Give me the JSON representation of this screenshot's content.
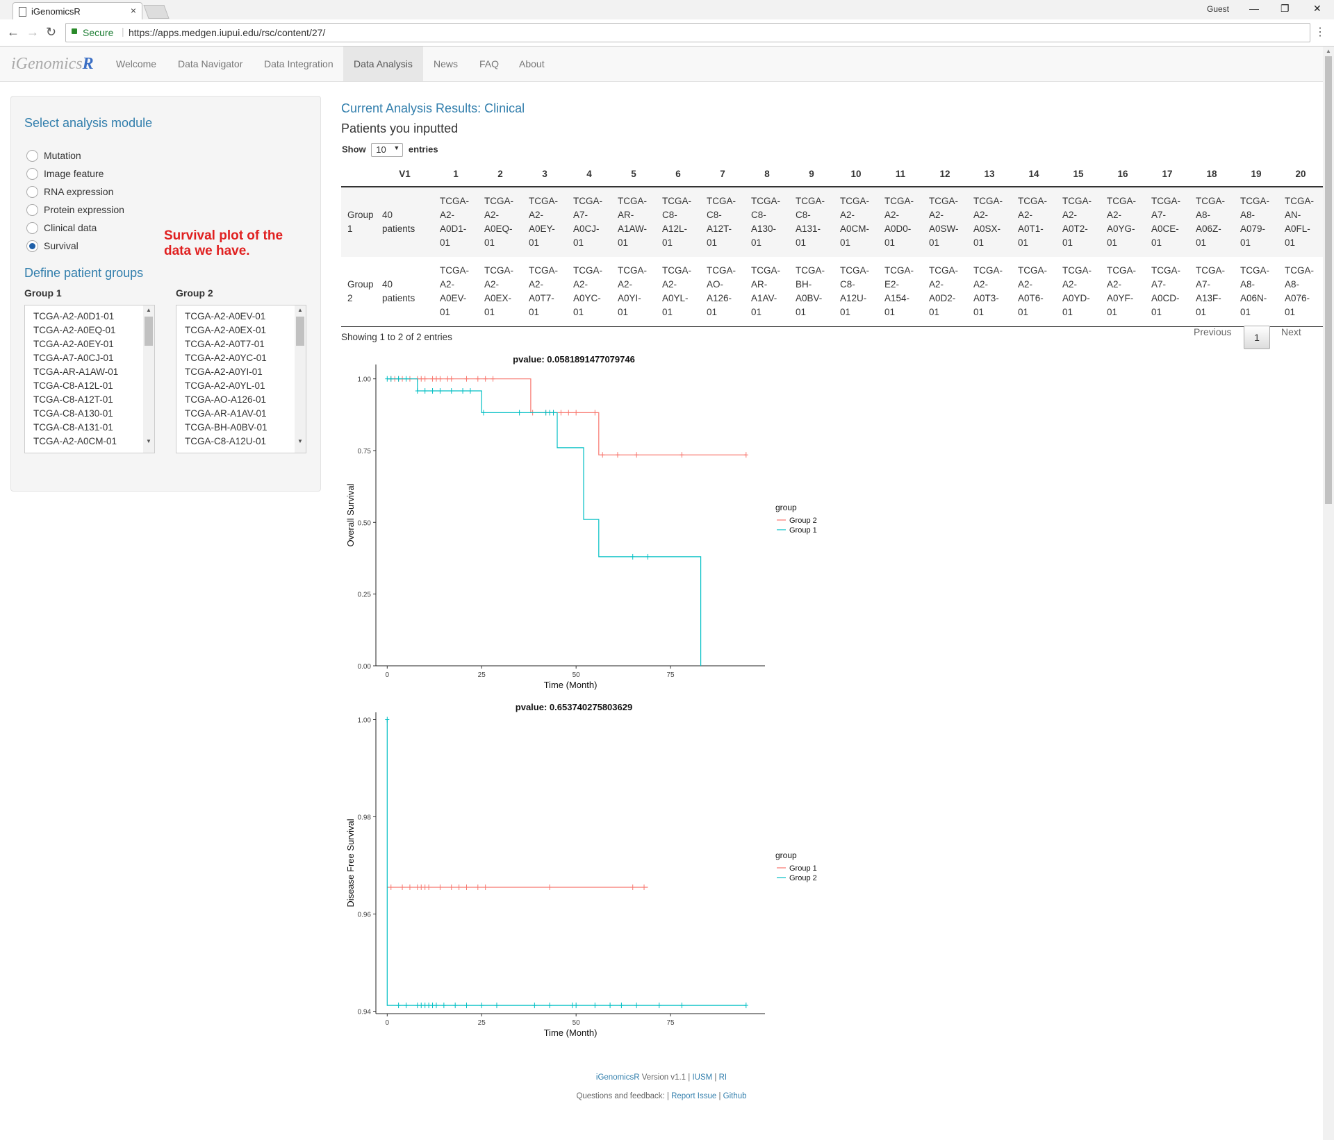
{
  "browser": {
    "tab_title": "iGenomicsR",
    "tab_close": "×",
    "profile": "Guest",
    "secure_label": "Secure",
    "url": "https://apps.medgen.iupui.edu/rsc/content/27/"
  },
  "nav": {
    "brand_prefix": "iGenomics",
    "brand_suffix": "R",
    "items": [
      "Welcome",
      "Data Navigator",
      "Data Integration",
      "Data Analysis",
      "News",
      "FAQ",
      "About"
    ],
    "active": "Data Analysis"
  },
  "sidebar": {
    "title": "Select analysis module",
    "options": [
      "Mutation",
      "Image feature",
      "RNA expression",
      "Protein expression",
      "Clinical data",
      "Survival"
    ],
    "selected": "Survival",
    "annotation": "Survival plot of the data we have.",
    "groups_title": "Define patient groups",
    "group1_label": "Group 1",
    "group2_label": "Group 2",
    "group1_items": [
      "TCGA-A2-A0D1-01",
      "TCGA-A2-A0EQ-01",
      "TCGA-A2-A0EY-01",
      "TCGA-A7-A0CJ-01",
      "TCGA-AR-A1AW-01",
      "TCGA-C8-A12L-01",
      "TCGA-C8-A12T-01",
      "TCGA-C8-A130-01",
      "TCGA-C8-A131-01",
      "TCGA-A2-A0CM-01"
    ],
    "group2_items": [
      "TCGA-A2-A0EV-01",
      "TCGA-A2-A0EX-01",
      "TCGA-A2-A0T7-01",
      "TCGA-A2-A0YC-01",
      "TCGA-A2-A0YI-01",
      "TCGA-A2-A0YL-01",
      "TCGA-AO-A126-01",
      "TCGA-AR-A1AV-01",
      "TCGA-BH-A0BV-01",
      "TCGA-C8-A12U-01"
    ]
  },
  "main": {
    "title": "Current Analysis Results: Clinical",
    "subtitle": "Patients you inputted",
    "show_label": "Show",
    "show_value": "10",
    "entries_label": "entries",
    "table": {
      "headers": [
        "",
        "V1",
        "1",
        "2",
        "3",
        "4",
        "5",
        "6",
        "7",
        "8",
        "9",
        "10",
        "11",
        "12",
        "13",
        "14",
        "15",
        "16",
        "17",
        "18",
        "19",
        "20"
      ],
      "rows": [
        [
          "Group 1",
          "40 patients",
          "TCGA-A2-A0D1-01",
          "TCGA-A2-A0EQ-01",
          "TCGA-A2-A0EY-01",
          "TCGA-A7-A0CJ-01",
          "TCGA-AR-A1AW-01",
          "TCGA-C8-A12L-01",
          "TCGA-C8-A12T-01",
          "TCGA-C8-A130-01",
          "TCGA-C8-A131-01",
          "TCGA-A2-A0CM-01",
          "TCGA-A2-A0D0-01",
          "TCGA-A2-A0SW-01",
          "TCGA-A2-A0SX-01",
          "TCGA-A2-A0T1-01",
          "TCGA-A2-A0T2-01",
          "TCGA-A2-A0YG-01",
          "TCGA-A7-A0CE-01",
          "TCGA-A8-A06Z-01",
          "TCGA-A8-A079-01",
          "TCGA-AN-A0FL-01"
        ],
        [
          "Group 2",
          "40 patients",
          "TCGA-A2-A0EV-01",
          "TCGA-A2-A0EX-01",
          "TCGA-A2-A0T7-01",
          "TCGA-A2-A0YC-01",
          "TCGA-A2-A0YI-01",
          "TCGA-A2-A0YL-01",
          "TCGA-AO-A126-01",
          "TCGA-AR-A1AV-01",
          "TCGA-BH-A0BV-01",
          "TCGA-C8-A12U-01",
          "TCGA-E2-A154-01",
          "TCGA-A2-A0D2-01",
          "TCGA-A2-A0T3-01",
          "TCGA-A2-A0T6-01",
          "TCGA-A2-A0YD-01",
          "TCGA-A2-A0YF-01",
          "TCGA-A7-A0CD-01",
          "TCGA-A7-A13F-01",
          "TCGA-A8-A06N-01",
          "TCGA-A8-A076-01"
        ]
      ]
    },
    "showing_text": "Showing 1 to 2 of 2 entries",
    "pager": {
      "previous": "Previous",
      "current": "1",
      "next": "Next"
    }
  },
  "chart_data": [
    {
      "type": "line",
      "title": "pvalue: 0.0581891477079746",
      "xlabel": "Time (Month)",
      "ylabel": "Overall Survival",
      "xlim": [
        -3,
        100
      ],
      "ylim": [
        0,
        1.05
      ],
      "x_ticks": [
        0,
        25,
        50,
        75
      ],
      "y_ticks": [
        0.0,
        0.25,
        0.5,
        0.75,
        1.0
      ],
      "y_tick_labels": [
        "0.00",
        "0.25",
        "0.50",
        "0.75",
        "1.00"
      ],
      "legend_title": "group",
      "legend_position": "right",
      "series": [
        {
          "name": "Group 2",
          "color": "#f8766d",
          "steps": [
            [
              0,
              1.0
            ],
            [
              38,
              1.0
            ],
            [
              38,
              0.882
            ],
            [
              56,
              0.882
            ],
            [
              56,
              0.735
            ],
            [
              95,
              0.735
            ]
          ],
          "censor": [
            [
              1,
              1
            ],
            [
              2,
              1
            ],
            [
              3,
              1
            ],
            [
              4,
              1
            ],
            [
              6,
              1
            ],
            [
              8,
              1
            ],
            [
              9,
              1
            ],
            [
              10,
              1
            ],
            [
              12,
              1
            ],
            [
              13,
              1
            ],
            [
              14,
              1
            ],
            [
              16,
              1
            ],
            [
              17,
              1
            ],
            [
              21,
              1
            ],
            [
              24,
              1
            ],
            [
              26,
              1
            ],
            [
              28,
              1
            ],
            [
              38.5,
              0.882
            ],
            [
              42,
              0.882
            ],
            [
              44,
              0.882
            ],
            [
              46,
              0.882
            ],
            [
              48,
              0.882
            ],
            [
              50,
              0.882
            ],
            [
              55,
              0.882
            ],
            [
              57,
              0.735
            ],
            [
              61,
              0.735
            ],
            [
              66,
              0.735
            ],
            [
              78,
              0.735
            ],
            [
              95,
              0.735
            ]
          ]
        },
        {
          "name": "Group 1",
          "color": "#00bfc4",
          "steps": [
            [
              0,
              1.0
            ],
            [
              8,
              1.0
            ],
            [
              8,
              0.958
            ],
            [
              25,
              0.958
            ],
            [
              25,
              0.882
            ],
            [
              45,
              0.882
            ],
            [
              45,
              0.76
            ],
            [
              52,
              0.76
            ],
            [
              52,
              0.51
            ],
            [
              56,
              0.51
            ],
            [
              56,
              0.38
            ],
            [
              83,
              0.38
            ],
            [
              83,
              0.0
            ]
          ],
          "censor": [
            [
              0,
              1
            ],
            [
              1,
              1
            ],
            [
              3,
              1
            ],
            [
              5,
              1
            ],
            [
              8,
              0.958
            ],
            [
              10,
              0.958
            ],
            [
              12,
              0.958
            ],
            [
              14,
              0.958
            ],
            [
              17,
              0.958
            ],
            [
              20,
              0.958
            ],
            [
              22,
              0.958
            ],
            [
              25.5,
              0.882
            ],
            [
              35,
              0.882
            ],
            [
              42,
              0.882
            ],
            [
              43,
              0.882
            ],
            [
              44,
              0.882
            ],
            [
              65,
              0.38
            ],
            [
              69,
              0.38
            ]
          ]
        }
      ]
    },
    {
      "type": "line",
      "title": "pvalue: 0.653740275803629",
      "xlabel": "Time (Month)",
      "ylabel": "Disease Free Survival",
      "xlim": [
        -3,
        100
      ],
      "ylim": [
        0.9395,
        1.0015
      ],
      "x_ticks": [
        0,
        25,
        50,
        75
      ],
      "y_ticks": [
        0.94,
        0.96,
        0.98,
        1.0
      ],
      "y_tick_labels": [
        "0.94",
        "0.96",
        "0.98",
        "1.00"
      ],
      "legend_title": "group",
      "legend_position": "right",
      "series": [
        {
          "name": "Group 1",
          "color": "#f8766d",
          "steps": [
            [
              0,
              0.9655
            ],
            [
              69,
              0.9655
            ]
          ],
          "censor": [
            [
              1,
              0.9655
            ],
            [
              4,
              0.9655
            ],
            [
              6,
              0.9655
            ],
            [
              8,
              0.9655
            ],
            [
              9,
              0.9655
            ],
            [
              10,
              0.9655
            ],
            [
              11,
              0.9655
            ],
            [
              14,
              0.9655
            ],
            [
              17,
              0.9655
            ],
            [
              19,
              0.9655
            ],
            [
              21,
              0.9655
            ],
            [
              24,
              0.9655
            ],
            [
              26,
              0.9655
            ],
            [
              43,
              0.9655
            ],
            [
              65,
              0.9655
            ],
            [
              68,
              0.9655
            ]
          ]
        },
        {
          "name": "Group 2",
          "color": "#00bfc4",
          "steps": [
            [
              0,
              1.0
            ],
            [
              0,
              0.9412
            ],
            [
              95,
              0.9412
            ]
          ],
          "censor": [
            [
              0,
              1.0
            ],
            [
              3,
              0.9412
            ],
            [
              5,
              0.9412
            ],
            [
              8,
              0.9412
            ],
            [
              9,
              0.9412
            ],
            [
              10,
              0.9412
            ],
            [
              11,
              0.9412
            ],
            [
              12,
              0.9412
            ],
            [
              13,
              0.9412
            ],
            [
              15,
              0.9412
            ],
            [
              18,
              0.9412
            ],
            [
              21,
              0.9412
            ],
            [
              25,
              0.9412
            ],
            [
              29,
              0.9412
            ],
            [
              39,
              0.9412
            ],
            [
              43,
              0.9412
            ],
            [
              49,
              0.9412
            ],
            [
              50,
              0.9412
            ],
            [
              55,
              0.9412
            ],
            [
              59,
              0.9412
            ],
            [
              62,
              0.9412
            ],
            [
              66,
              0.9412
            ],
            [
              72,
              0.9412
            ],
            [
              78,
              0.9412
            ],
            [
              95,
              0.9412
            ]
          ]
        }
      ]
    }
  ],
  "footer": {
    "app": "iGenomicsR",
    "version_text": "Version v1.1 |",
    "iusm": "IUSM",
    "sep": "|",
    "ri": "RI",
    "questions": "Questions and feedback: |",
    "report": "Report Issue",
    "github": "Github"
  }
}
